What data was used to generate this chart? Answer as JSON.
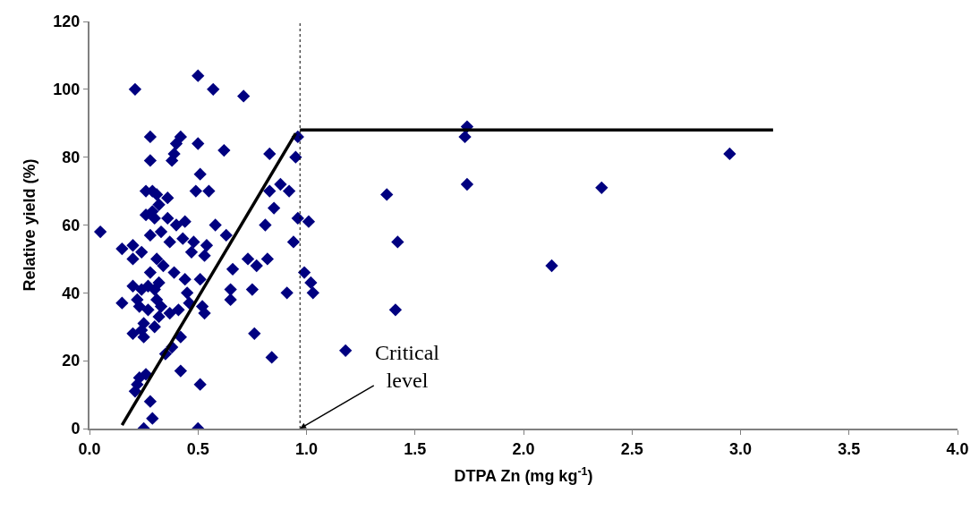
{
  "chart_data": {
    "type": "scatter",
    "xlabel": "DTPA Zn (mg kg$^{-1}$)",
    "ylabel": "Relative yield (%)",
    "xlim": [
      0,
      4
    ],
    "xticks": [
      {
        "value": 0,
        "label": "0.0"
      },
      {
        "value": 0.5,
        "label": "0.5"
      },
      {
        "value": 1,
        "label": "1.0"
      },
      {
        "value": 1.5,
        "label": "1.5"
      },
      {
        "value": 2,
        "label": "2.0"
      },
      {
        "value": 2.5,
        "label": "2.5"
      },
      {
        "value": 3,
        "label": "3.0"
      },
      {
        "value": 3.5,
        "label": "3.5"
      },
      {
        "value": 4,
        "label": "4.0"
      }
    ],
    "ylim": [
      0,
      120
    ],
    "yticks": [
      0,
      20,
      40,
      60,
      80,
      100,
      120
    ],
    "series": [
      {
        "marker": "diamond",
        "color": "#000080",
        "x": [
          0.05,
          0.15,
          0.15,
          0.2,
          0.2,
          0.2,
          0.2,
          0.21,
          0.21,
          0.22,
          0.22,
          0.23,
          0.23,
          0.24,
          0.24,
          0.24,
          0.25,
          0.25,
          0.25,
          0.26,
          0.26,
          0.26,
          0.27,
          0.27,
          0.28,
          0.28,
          0.28,
          0.28,
          0.28,
          0.29,
          0.29,
          0.29,
          0.3,
          0.3,
          0.3,
          0.31,
          0.31,
          0.31,
          0.32,
          0.32,
          0.32,
          0.33,
          0.33,
          0.34,
          0.35,
          0.36,
          0.36,
          0.37,
          0.37,
          0.38,
          0.38,
          0.39,
          0.39,
          0.4,
          0.4,
          0.41,
          0.42,
          0.42,
          0.42,
          0.43,
          0.44,
          0.44,
          0.45,
          0.46,
          0.47,
          0.48,
          0.49,
          0.5,
          0.5,
          0.5,
          0.51,
          0.51,
          0.51,
          0.52,
          0.53,
          0.53,
          0.54,
          0.55,
          0.57,
          0.58,
          0.62,
          0.63,
          0.65,
          0.66,
          0.65,
          0.71,
          0.73,
          0.75,
          0.76,
          0.77,
          0.82,
          0.81,
          0.83,
          0.83,
          0.84,
          0.85,
          0.88,
          0.91,
          0.92,
          0.94,
          0.95,
          0.96,
          0.96,
          0.99,
          1.01,
          1.02,
          1.03,
          1.18,
          1.37,
          1.41,
          1.42,
          1.73,
          1.74,
          1.74,
          2.13,
          2.36,
          2.95
        ],
        "values": [
          58,
          53,
          37,
          54,
          50,
          42,
          28,
          100,
          11,
          13,
          38,
          36,
          15,
          29,
          52,
          41,
          27,
          0,
          31,
          63,
          70,
          16,
          42,
          35,
          79,
          86,
          57,
          46,
          8,
          3,
          64,
          70,
          62,
          41,
          30,
          69,
          50,
          38,
          66,
          43,
          33,
          58,
          36,
          48,
          22,
          68,
          62,
          55,
          34,
          79,
          24,
          81,
          46,
          84,
          60,
          35,
          86,
          17,
          27,
          56,
          61,
          44,
          40,
          37,
          52,
          55,
          70,
          84,
          104,
          0,
          13,
          75,
          44,
          36,
          51,
          34,
          54,
          70,
          100,
          60,
          82,
          57,
          41,
          47,
          38,
          98,
          50,
          41,
          28,
          48,
          50,
          60,
          70,
          81,
          21,
          65,
          72,
          40,
          70,
          55,
          80,
          62,
          86,
          46,
          61,
          43,
          40,
          23,
          69,
          35,
          55,
          86,
          89,
          72,
          48,
          71,
          81
        ]
      },
      {
        "type": "line",
        "marker": "none",
        "line_style": "solid",
        "color": "#000000",
        "x": [
          0.15,
          0.95
        ],
        "values": [
          1,
          87
        ]
      },
      {
        "type": "line",
        "marker": "none",
        "line_style": "solid",
        "color": "#000000",
        "x": [
          0.97,
          3.15
        ],
        "values": [
          88,
          88
        ]
      }
    ],
    "ref_lines": [
      {
        "axis": "x",
        "value": 0.97,
        "line_style": "dotted",
        "color": "#000000"
      }
    ],
    "annotations": [
      {
        "text": "Critical\nlevel",
        "x": 0.97,
        "y": 0
      }
    ]
  }
}
